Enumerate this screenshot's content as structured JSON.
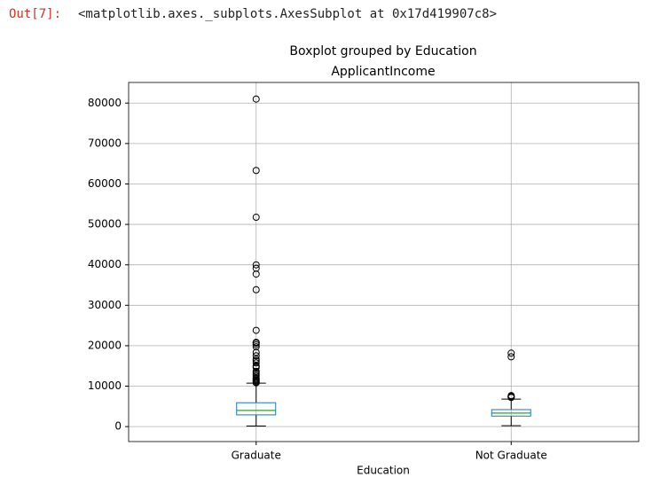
{
  "cell": {
    "prompt": "Out[7]:",
    "text": "<matplotlib.axes._subplots.AxesSubplot at 0x17d419907c8>"
  },
  "chart_data": {
    "type": "box",
    "suptitle": "Boxplot grouped by Education",
    "title": "ApplicantIncome",
    "x_label": "Education",
    "categories": [
      "Graduate",
      "Not Graduate"
    ],
    "boxes": [
      {
        "whislo": 150,
        "q1": 2900,
        "med": 4000,
        "q3": 5900,
        "whishi": 10750,
        "fliers": [
          81000,
          63337,
          51763,
          39999,
          39147,
          37719,
          33846,
          23803,
          20833,
          20667,
          20233,
          19730,
          18333,
          17500,
          16666,
          16250,
          15759,
          15000,
          14880,
          14583,
          13650,
          13262,
          12876,
          12500,
          12000,
          11757,
          11500,
          11250,
          11000,
          10833
        ]
      },
      {
        "whislo": 210,
        "q1": 2600,
        "med": 3350,
        "q3": 4200,
        "whishi": 6800,
        "fliers": [
          18165,
          17263,
          7667,
          7451,
          7333,
          7200
        ]
      }
    ],
    "box_color": "#1f77b4",
    "median_color": "#2ca02c",
    "ylim": [
      -3700,
      85100
    ],
    "yticks": [
      0,
      10000,
      20000,
      30000,
      40000,
      50000,
      60000,
      70000,
      80000
    ],
    "grid": true
  }
}
